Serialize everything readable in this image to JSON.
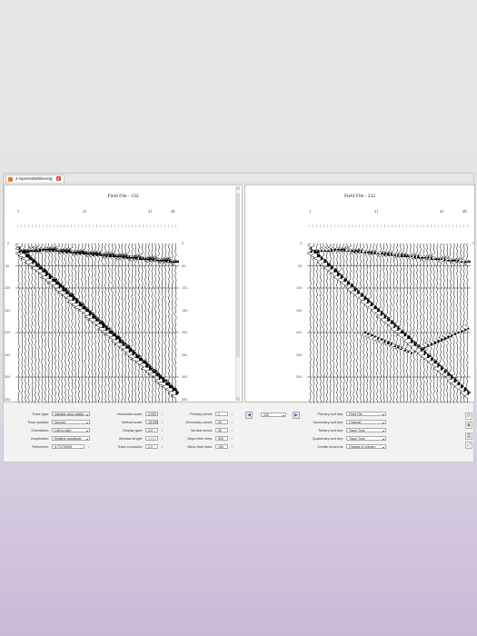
{
  "tab": {
    "label": "2-SpectralWhitening"
  },
  "panels": [
    {
      "title": "Field File - 232",
      "trace_labels": [
        "1",
        "21",
        "41",
        "48"
      ],
      "ticks": "| | | | | | | | | | | | | | | | | | | | | | | | | | | | | | | | | | | | | | | | | | | | | | | |",
      "y_labels": [
        "0",
        "50",
        "100",
        "150",
        "200",
        "250",
        "300",
        "350"
      ],
      "y_labels_right": [
        "0",
        "50",
        "100",
        "150",
        "200",
        "250",
        "300",
        "350"
      ]
    },
    {
      "title": "Field File - 232",
      "trace_labels": [
        "1",
        "21",
        "41",
        "48"
      ],
      "ticks": "| | | | | | | | | | | | | | | | | | | | | | | | | | | | | | | | | | | | | | | | | | | | | | | |",
      "y_labels": [
        "0",
        "50",
        "100",
        "150",
        "200",
        "250",
        "300"
      ],
      "y_labels_right": [
        "0"
      ]
    }
  ],
  "controls": {
    "col1": [
      {
        "label": "Trace type:",
        "value": "Variable area wiggle"
      },
      {
        "label": "Trace polarity:",
        "value": "Normal"
      },
      {
        "label": "Orientation:",
        "value": "Left-to-right"
      },
      {
        "label": "Amplitudes:",
        "value": "Relative amplitude"
      },
      {
        "label": "Reference:",
        "value": "0.77276928"
      }
    ],
    "col2": [
      {
        "label": "Horizontal scale:",
        "value": "0.000"
      },
      {
        "label": "Vertical scale:",
        "value": "15.000"
      },
      {
        "label": "Display gain:",
        "value": "0.0"
      },
      {
        "label": "Window length:",
        "value": "500.0"
      },
      {
        "label": "Trace excursion:",
        "value": "2.0"
      }
    ],
    "col3": [
      {
        "label": "Primary annot:",
        "value": "1"
      },
      {
        "label": "Secondary annot:",
        "value": "20"
      },
      {
        "label": "Vertical annot:",
        "value": "50"
      },
      {
        "label": "Major time lines:",
        "value": "500"
      },
      {
        "label": "Minor time lines:",
        "value": "100"
      }
    ],
    "record_select": "232",
    "col4": [
      {
        "label": "Primary sort key:",
        "value": "Field File"
      },
      {
        "label": "Secondary sort key:",
        "value": "Channel"
      },
      {
        "label": "Tertiary sort key:",
        "value": "Trace Type"
      },
      {
        "label": "Quaternary sort key:",
        "value": "Trace Type"
      },
      {
        "label": "Create record at:",
        "value": "Change in primary"
      }
    ]
  },
  "colors": {
    "accent": "#4a5bb0",
    "tab_icon": "#e07a1f",
    "close": "#d84b3a"
  }
}
